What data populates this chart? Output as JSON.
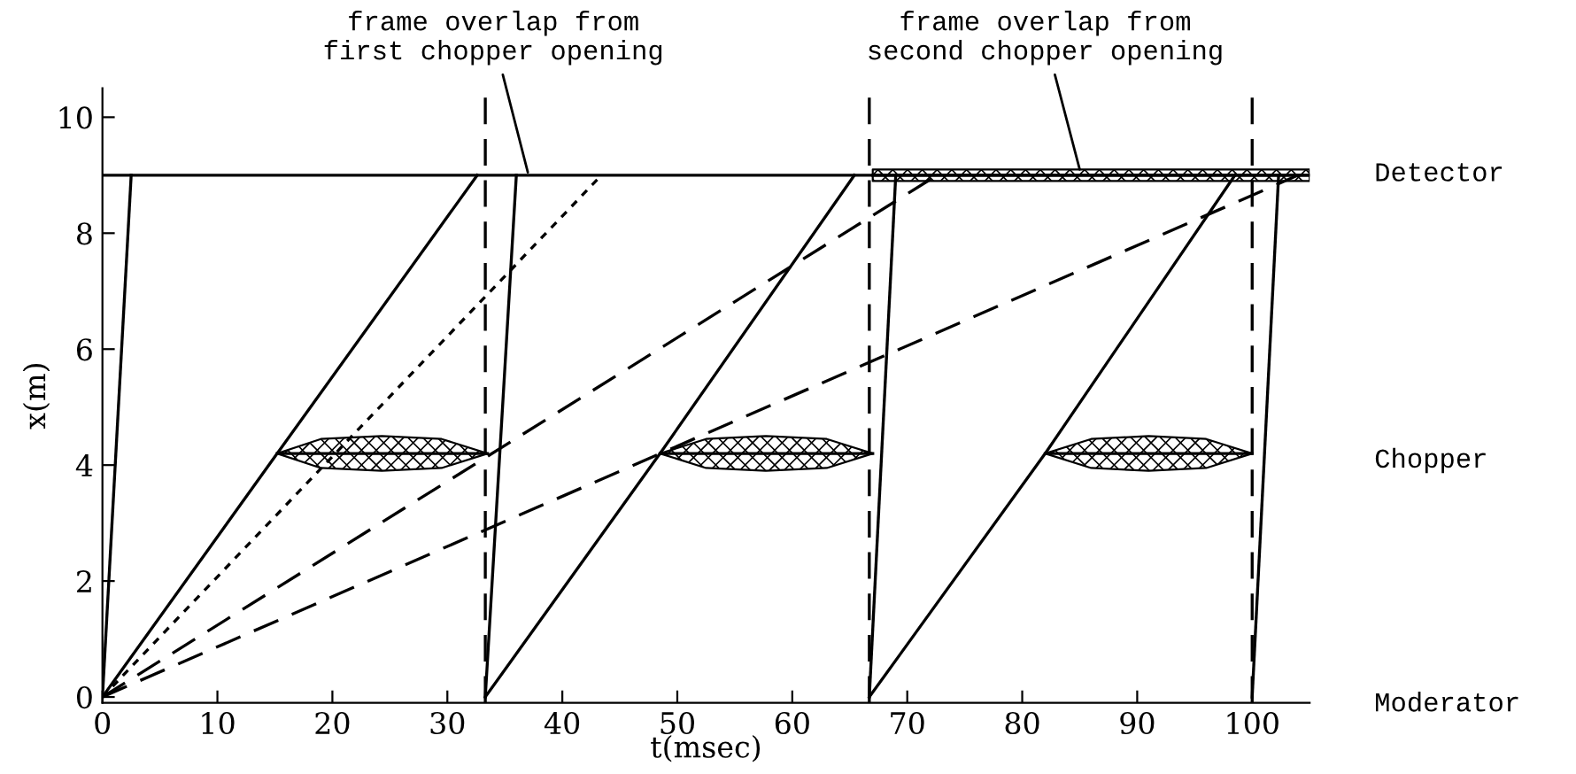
{
  "chart_data": {
    "type": "line",
    "xlabel": "t(msec)",
    "ylabel": "x(m)",
    "xlim": [
      0,
      105
    ],
    "ylim": [
      -0.1,
      10.5
    ],
    "xticks": [
      0,
      10,
      20,
      30,
      40,
      50,
      60,
      70,
      80,
      90,
      100
    ],
    "yticks": [
      0,
      2,
      4,
      6,
      8,
      10
    ],
    "grid": false,
    "legend": false,
    "marker": "none",
    "series": [
      {
        "color": "#000000",
        "line_style": "solid",
        "x": [
          0,
          105
        ],
        "values": [
          9,
          9
        ]
      },
      {
        "color": "#000000",
        "line_style": "solid",
        "x": [
          0,
          2.5
        ],
        "values": [
          0,
          9
        ]
      },
      {
        "color": "#000000",
        "line_style": "solid",
        "x": [
          0,
          15.2,
          32.6
        ],
        "values": [
          0,
          4.2,
          9
        ]
      },
      {
        "color": "#000000",
        "line_style": "dotted",
        "x": [
          0,
          43.4
        ],
        "values": [
          0,
          9
        ]
      },
      {
        "color": "#000000",
        "line_style": "dashed",
        "x": [
          0,
          72.6
        ],
        "values": [
          0,
          9
        ]
      },
      {
        "color": "#000000",
        "line_style": "dashed",
        "x": [
          0,
          104
        ],
        "values": [
          0,
          9
        ]
      },
      {
        "color": "#000000",
        "line_style": "solid",
        "x": [
          33.3,
          36
        ],
        "values": [
          0,
          9
        ]
      },
      {
        "color": "#000000",
        "line_style": "solid",
        "x": [
          33.3,
          48.5,
          65.4
        ],
        "values": [
          0,
          4.2,
          9
        ]
      },
      {
        "color": "#000000",
        "line_style": "solid",
        "x": [
          66.7,
          69
        ],
        "values": [
          0,
          9
        ]
      },
      {
        "color": "#000000",
        "line_style": "solid",
        "x": [
          66.7,
          82,
          98.5
        ],
        "values": [
          0,
          4.2,
          9
        ]
      },
      {
        "color": "#000000",
        "line_style": "solid",
        "x": [
          100,
          102.3
        ],
        "values": [
          0,
          9
        ]
      },
      {
        "color": "#000000",
        "line_style": "solid",
        "x": [
          15.2,
          19,
          24.3,
          29.5,
          33.5
        ],
        "values": [
          4.2,
          4.2,
          4.2,
          4.2,
          4.2
        ],
        "lower": [
          4.2,
          3.95,
          3.9,
          3.95,
          4.2
        ],
        "upper": [
          4.2,
          4.45,
          4.5,
          4.45,
          4.2
        ]
      },
      {
        "color": "#000000",
        "line_style": "solid",
        "x": [
          48.5,
          52.5,
          57.7,
          63,
          67
        ],
        "values": [
          4.2,
          4.2,
          4.2,
          4.2,
          4.2
        ],
        "lower": [
          4.2,
          3.95,
          3.9,
          3.95,
          4.2
        ],
        "upper": [
          4.2,
          4.45,
          4.5,
          4.45,
          4.2
        ]
      },
      {
        "color": "#000000",
        "line_style": "solid",
        "x": [
          82,
          86,
          91,
          96,
          100
        ],
        "values": [
          4.2,
          4.2,
          4.2,
          4.2,
          4.2
        ],
        "lower": [
          4.2,
          3.95,
          3.9,
          3.95,
          4.2
        ],
        "upper": [
          4.2,
          4.45,
          4.5,
          4.45,
          4.2
        ]
      },
      {
        "color": "#000000",
        "line_style": "solid",
        "x": [
          67,
          105
        ],
        "values": [
          9,
          9
        ],
        "lower": [
          8.9,
          8.9
        ],
        "upper": [
          9.1,
          9.1
        ]
      }
    ],
    "ref_lines": [
      {
        "axis": "x",
        "value": 33.3,
        "color": "#000000",
        "line_style": "dashed"
      },
      {
        "axis": "x",
        "value": 66.7,
        "color": "#000000",
        "line_style": "dashed"
      },
      {
        "axis": "x",
        "value": 100,
        "color": "#000000",
        "line_style": "dashed"
      }
    ],
    "annotations": [
      {
        "text": "frame overlap from\nfirst chopper opening",
        "x": 37,
        "y": 9.05
      },
      {
        "text": "frame overlap from\nsecond chopper opening",
        "x": 85,
        "y": 9.1
      },
      "Detector",
      "Chopper",
      "Moderator"
    ]
  }
}
